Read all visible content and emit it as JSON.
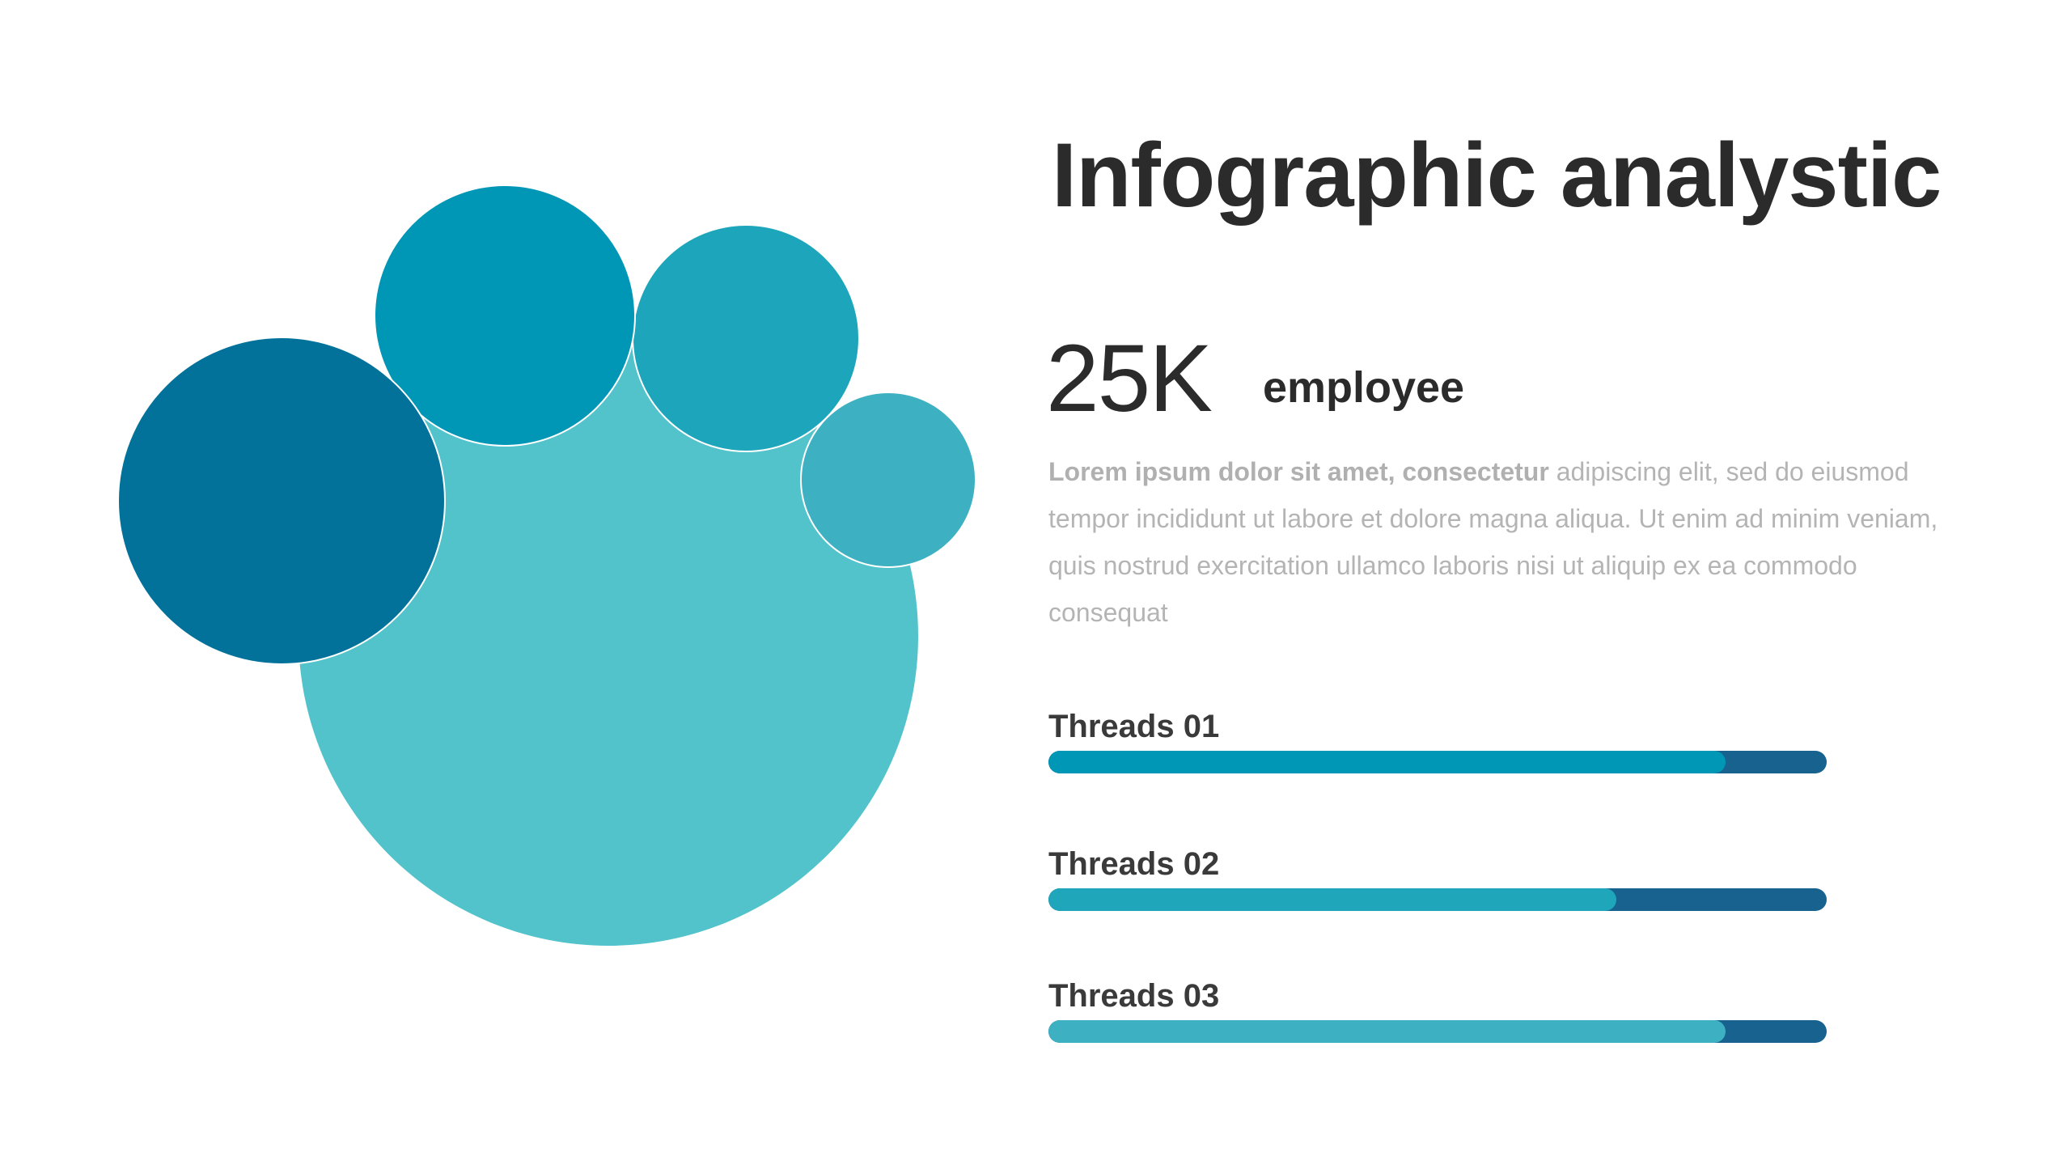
{
  "title": "Infographic analystic",
  "stat": {
    "value": "25K",
    "label": "employee"
  },
  "description": {
    "lead": "Lorem ipsum dolor sit amet, consectetur",
    "rest": " adipiscing elit, sed do eiusmod tempor incididunt ut labore et dolore magna aliqua. Ut enim ad minim veniam, quis nostrud exercitation ullamco laboris nisi ut aliquip ex ea commodo consequat"
  },
  "threads": [
    {
      "label": "Threads 01",
      "fraction": 0.87,
      "color": "#0096b6"
    },
    {
      "label": "Threads 02",
      "fraction": 0.73,
      "color": "#1fa6bb"
    },
    {
      "label": "Threads 03",
      "fraction": 0.87,
      "color": "#3db0c1"
    }
  ],
  "bar_track_color": "#17628f",
  "bubble_colors": {
    "large": "#53c3cb",
    "left": "#02729b",
    "top_left": "#0096b6",
    "top_right": "#1ca5bb",
    "small_right": "#3db0c1"
  }
}
